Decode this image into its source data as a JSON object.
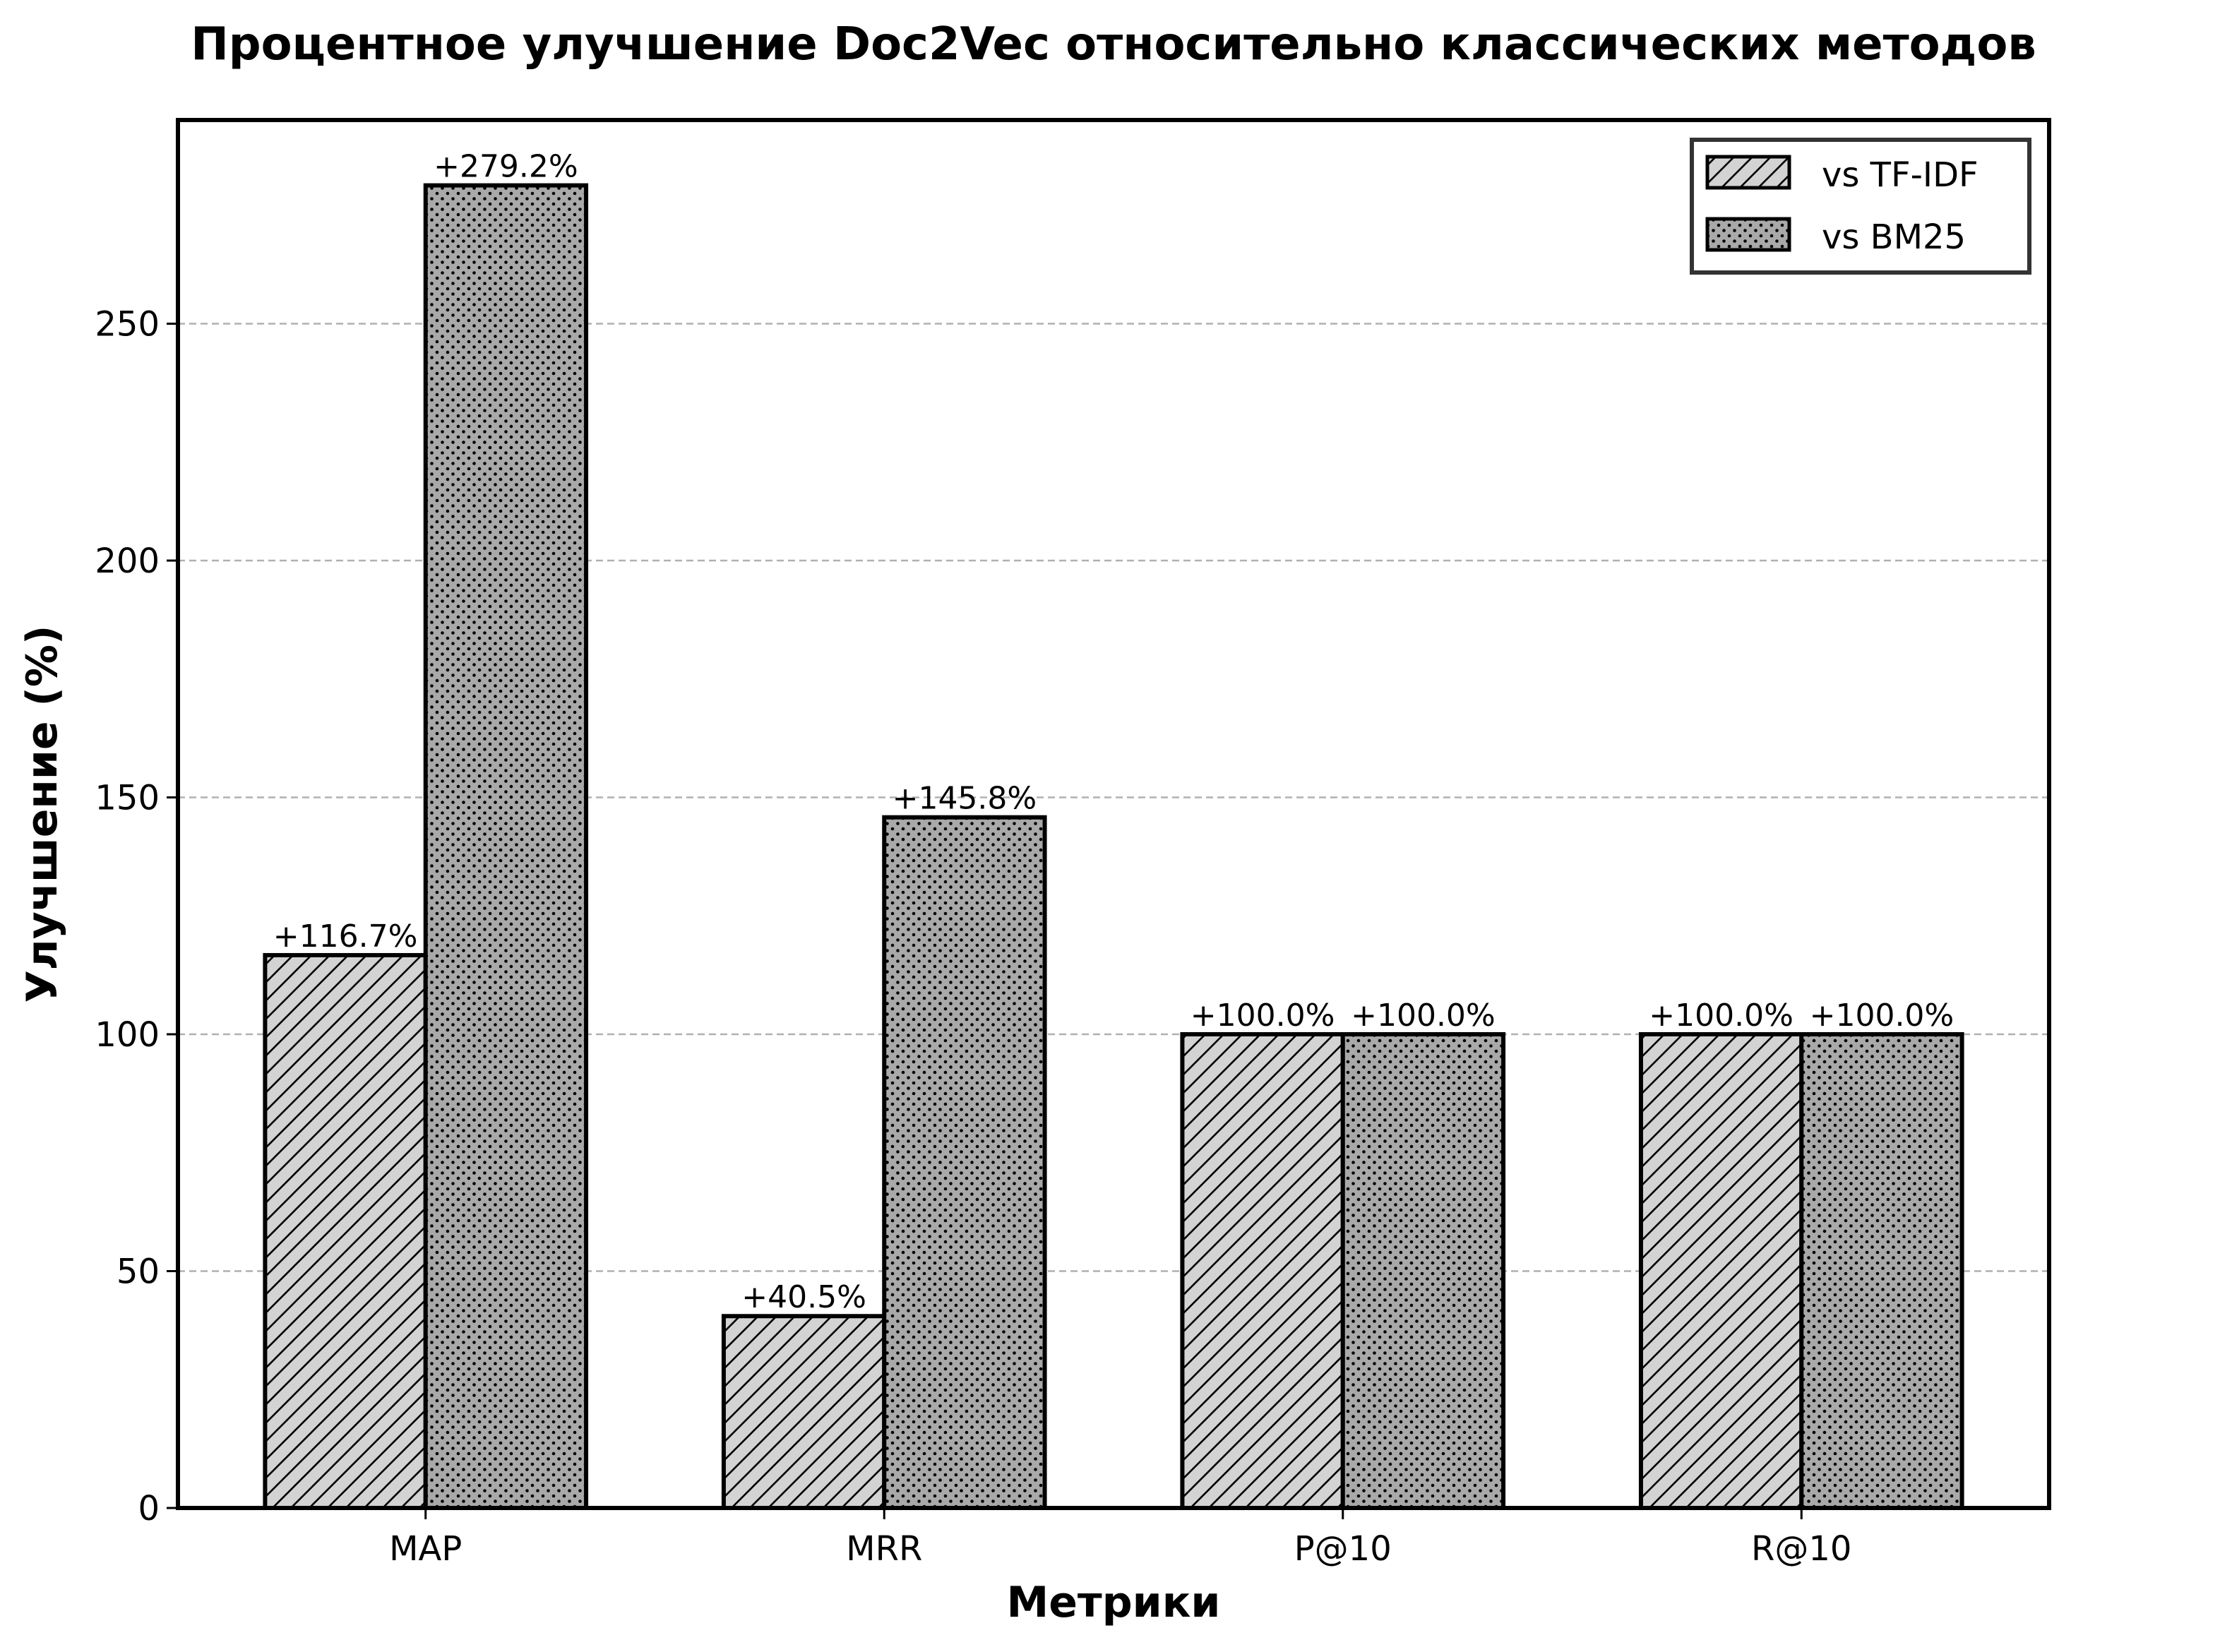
{
  "chart_data": {
    "type": "bar",
    "title": "Процентное улучшение Doc2Vec относительно классических методов",
    "xlabel": "Метрики",
    "ylabel": "Улучшение (%)",
    "categories": [
      "MAP",
      "MRR",
      "P@10",
      "R@10"
    ],
    "series": [
      {
        "name": "vs TF-IDF",
        "values": [
          116.7,
          40.5,
          100.0,
          100.0
        ],
        "labels": [
          "+116.7%",
          "+40.5%",
          "+100.0%",
          "+100.0%"
        ],
        "color": "#d3d3d3",
        "hatch": "diagonal"
      },
      {
        "name": "vs BM25",
        "values": [
          279.2,
          145.8,
          100.0,
          100.0
        ],
        "labels": [
          "+279.2%",
          "+145.8%",
          "+100.0%",
          "+100.0%"
        ],
        "color": "#a9a9a9",
        "hatch": "dots"
      }
    ],
    "ylim": [
      0,
      293
    ],
    "yticks": [
      0,
      50,
      100,
      150,
      200,
      250
    ],
    "ytick_labels": [
      "0",
      "50",
      "100",
      "150",
      "200",
      "250"
    ],
    "grid": "y-dashed",
    "legend_position": "top-right",
    "edge_color": "#000000",
    "grid_color": "#b0b0b0"
  }
}
